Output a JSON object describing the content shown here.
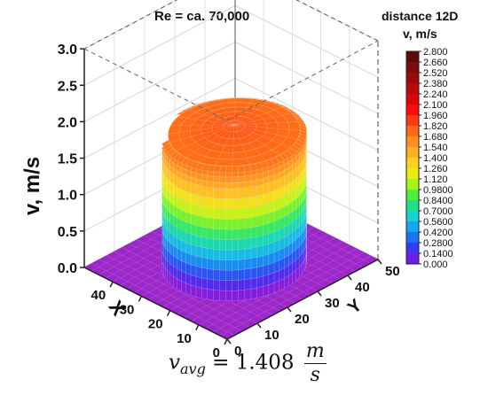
{
  "chart_data": {
    "type": "3d-surface",
    "title": "Re = ca. 70,000",
    "zlabel": "v, m/s",
    "xlabel": "X",
    "ylabel": "Y",
    "z_ticks": [
      "0.0",
      "0.5",
      "1.0",
      "1.5",
      "2.0",
      "2.5",
      "3.0"
    ],
    "zlim": [
      0,
      3.0
    ],
    "x_ticks": [
      "0",
      "10",
      "20",
      "30",
      "40"
    ],
    "y_ticks": [
      "0",
      "10",
      "20",
      "30",
      "40",
      "50"
    ],
    "xlim": [
      0,
      50
    ],
    "ylim": [
      0,
      50
    ],
    "surface": {
      "description": "flat-top plug velocity profile",
      "plateau_velocity": 1.8,
      "peak_velocity": 1.9,
      "outside_velocity": 0.0
    },
    "colorbar": {
      "heading": "distance 12D",
      "label": "v, m/s",
      "levels": [
        "2.800",
        "2.660",
        "2.520",
        "2.380",
        "2.240",
        "2.100",
        "1.960",
        "1.820",
        "1.680",
        "1.540",
        "1.400",
        "1.260",
        "1.120",
        "0.9800",
        "0.8400",
        "0.7000",
        "0.5600",
        "0.4200",
        "0.2800",
        "0.1400",
        "0.000"
      ],
      "colors": [
        "#5a0a0a",
        "#7a0c0c",
        "#9a0a0a",
        "#bb0808",
        "#dd0606",
        "#ff0a0a",
        "#ff3a12",
        "#ff6a18",
        "#ff8f1e",
        "#ffb020",
        "#ffd020",
        "#e6ef10",
        "#a6f41c",
        "#4ef03a",
        "#1ee08a",
        "#16d2d6",
        "#14a6f0",
        "#1e72f2",
        "#3a3af0",
        "#6a1ee6",
        "#a01ed2"
      ]
    },
    "annotation": {
      "lhs": "v",
      "subscript": "avg",
      "equals": "= 1.408",
      "unit_num": "m",
      "unit_den": "s"
    }
  }
}
